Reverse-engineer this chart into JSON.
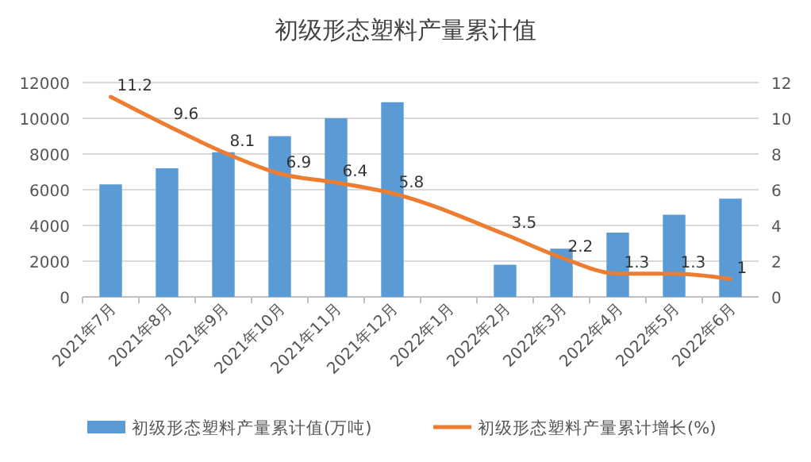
{
  "chart_data": {
    "type": "bar",
    "title": "初级形态塑料产量累计值",
    "categories": [
      "2021年7月",
      "2021年8月",
      "2021年9月",
      "2021年10月",
      "2021年11月",
      "2021年12月",
      "2022年1月",
      "2022年2月",
      "2022年3月",
      "2022年4月",
      "2022年5月",
      "2022年6月"
    ],
    "series": [
      {
        "name": "初级形态塑料产量累计值(万吨)",
        "color": "#5b9bd5",
        "values": [
          6300,
          7200,
          8100,
          9000,
          10000,
          10900,
          null,
          1800,
          2700,
          3600,
          4600,
          5500
        ]
      },
      {
        "name": "初级形态塑料产量累计增长(%)",
        "type": "line",
        "axis": "y2",
        "color": "#ed7d31",
        "values": [
          11.2,
          9.6,
          8.1,
          6.9,
          6.4,
          5.8,
          null,
          3.5,
          2.2,
          1.3,
          1.3,
          1
        ],
        "data_labels": true
      }
    ],
    "ylim": [
      0,
      12000
    ],
    "yticks": [
      0,
      2000,
      4000,
      6000,
      8000,
      10000,
      12000
    ],
    "y2lim": [
      0,
      12
    ],
    "y2ticks": [
      0,
      2,
      4,
      6,
      8,
      10,
      12
    ],
    "grid": "y",
    "legend": "bottom"
  }
}
